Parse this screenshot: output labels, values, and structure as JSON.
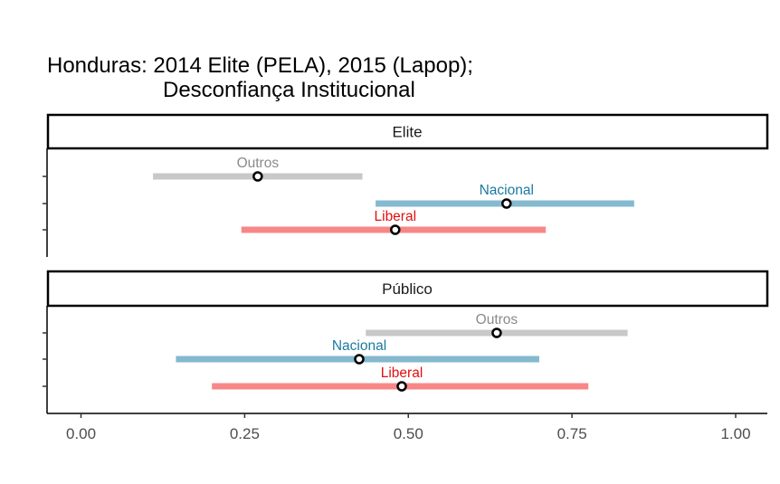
{
  "chart_data": {
    "type": "forest",
    "title_line1": "Honduras: 2014 Elite (PELA), 2015 (Lapop);",
    "title_line2": "Desconfiança Institucional",
    "xlim": [
      -0.05,
      1.05
    ],
    "x_ticks": [
      0,
      0.25,
      0.5,
      0.75,
      1
    ],
    "x_tick_labels": [
      "0.00",
      "0.25",
      "0.50",
      "0.75",
      "1.00"
    ],
    "xlabel": "",
    "ylabel": "",
    "grid": false,
    "panels": [
      {
        "strip": "Elite",
        "rows": [
          {
            "party": "Outros",
            "estimate": 0.27,
            "lower": 0.11,
            "upper": 0.43,
            "color": "#c8c8c8",
            "label_color": "#8a8a8a"
          },
          {
            "party": "Nacional",
            "estimate": 0.65,
            "lower": 0.45,
            "upper": 0.845,
            "color": "#84b9cf",
            "label_color": "#1a7aa0"
          },
          {
            "party": "Liberal",
            "estimate": 0.48,
            "lower": 0.245,
            "upper": 0.71,
            "color": "#f78787",
            "label_color": "#e01010"
          }
        ]
      },
      {
        "strip": "Público",
        "rows": [
          {
            "party": "Outros",
            "estimate": 0.635,
            "lower": 0.435,
            "upper": 0.835,
            "color": "#c8c8c8",
            "label_color": "#8a8a8a"
          },
          {
            "party": "Nacional",
            "estimate": 0.425,
            "lower": 0.145,
            "upper": 0.7,
            "color": "#84b9cf",
            "label_color": "#1a7aa0"
          },
          {
            "party": "Liberal",
            "estimate": 0.49,
            "lower": 0.2,
            "upper": 0.775,
            "color": "#f78787",
            "label_color": "#e01010"
          }
        ]
      }
    ]
  }
}
